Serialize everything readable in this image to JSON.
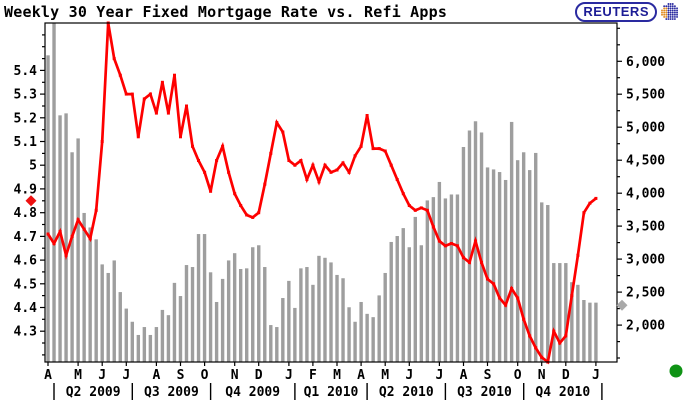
{
  "header": {
    "title": "Weekly 30 Year Fixed Mortgage Rate vs. Refi Apps",
    "logo_text": "REUTERS"
  },
  "chart_data": {
    "type": "bar",
    "subtype": "combo-line-bar",
    "title": "Weekly 30 Year Fixed Mortgage Rate vs. Refi Apps",
    "x_slots": 95,
    "weeks": 92,
    "series": [
      {
        "name": "30 Year Fixed Mortgage Rate",
        "type": "line",
        "axis": "left",
        "color": "#fe0000",
        "values": [
          4.71,
          4.67,
          4.72,
          4.62,
          4.7,
          4.77,
          4.73,
          4.69,
          4.81,
          5.1,
          5.6,
          5.45,
          5.38,
          5.3,
          5.3,
          5.12,
          5.28,
          5.3,
          5.22,
          5.35,
          5.22,
          5.38,
          5.12,
          5.25,
          5.08,
          5.02,
          4.97,
          4.89,
          5.02,
          5.08,
          4.97,
          4.88,
          4.83,
          4.79,
          4.78,
          4.8,
          4.92,
          5.05,
          5.18,
          5.14,
          5.02,
          5.0,
          5.02,
          4.94,
          5.0,
          4.93,
          5.0,
          4.97,
          4.98,
          5.01,
          4.97,
          5.04,
          5.08,
          5.21,
          5.07,
          5.07,
          5.06,
          5.0,
          4.94,
          4.88,
          4.83,
          4.81,
          4.82,
          4.81,
          4.74,
          4.68,
          4.66,
          4.67,
          4.66,
          4.61,
          4.59,
          4.68,
          4.59,
          4.52,
          4.5,
          4.44,
          4.41,
          4.48,
          4.44,
          4.35,
          4.28,
          4.23,
          4.19,
          4.17,
          4.3,
          4.25,
          4.28,
          4.45,
          4.62,
          4.8,
          4.84,
          4.86
        ]
      },
      {
        "name": "Refi Apps",
        "type": "bar",
        "axis": "right",
        "color": "#9e9e9e",
        "values": [
          6090,
          6650,
          5180,
          5210,
          4620,
          4830,
          3700,
          3480,
          3300,
          2920,
          2790,
          2980,
          2500,
          2250,
          2050,
          1850,
          1970,
          1850,
          1970,
          2230,
          2150,
          2640,
          2440,
          2910,
          2880,
          3380,
          3380,
          2800,
          2350,
          2700,
          2980,
          3090,
          2850,
          2860,
          3180,
          3210,
          2880,
          2000,
          1970,
          2410,
          2670,
          2260,
          2860,
          2880,
          2610,
          3050,
          3020,
          2950,
          2760,
          2710,
          2270,
          2050,
          2350,
          2170,
          2120,
          2450,
          2790,
          3260,
          3350,
          3470,
          3180,
          3640,
          3210,
          3890,
          3940,
          4170,
          3920,
          3980,
          3980,
          4700,
          4950,
          5090,
          4920,
          4390,
          4360,
          4320,
          4200,
          5080,
          4500,
          4620,
          4350,
          4610,
          3860,
          3820,
          2940,
          2940,
          2940,
          2650,
          2610,
          2380,
          2340,
          2340
        ]
      }
    ],
    "left_axis": {
      "min": 4.17,
      "max": 5.6,
      "tick_labels": [
        "5.4",
        "5.3",
        "5.2",
        "5.1",
        "5",
        "4.9",
        "4.8",
        "4.7",
        "4.6",
        "4.5",
        "4.4",
        "4.3"
      ],
      "major_step": 0.1,
      "minor_step": 0.05,
      "latest_value": 4.85,
      "marker_color": "#ee1111"
    },
    "right_axis": {
      "min": 1440,
      "max": 6580,
      "tick_labels": [
        "6,000",
        "5,500",
        "5,000",
        "4,500",
        "4,000",
        "3,500",
        "3,000",
        "2,500",
        "2,000"
      ],
      "major_step": 500,
      "minor_step": 250,
      "latest_value": 2300,
      "marker_color": "#a9a9a9"
    },
    "x_axis": {
      "months": [
        {
          "label": "A",
          "week": 0
        },
        {
          "label": "M",
          "week": 5
        },
        {
          "label": "J",
          "week": 9
        },
        {
          "label": "J",
          "week": 13
        },
        {
          "label": "A",
          "week": 18
        },
        {
          "label": "S",
          "week": 22
        },
        {
          "label": "O",
          "week": 26
        },
        {
          "label": "N",
          "week": 31
        },
        {
          "label": "D",
          "week": 35
        },
        {
          "label": "J",
          "week": 40
        },
        {
          "label": "F",
          "week": 44
        },
        {
          "label": "M",
          "week": 48
        },
        {
          "label": "A",
          "week": 52
        },
        {
          "label": "M",
          "week": 56
        },
        {
          "label": "J",
          "week": 60
        },
        {
          "label": "J",
          "week": 65
        },
        {
          "label": "A",
          "week": 69
        },
        {
          "label": "S",
          "week": 73
        },
        {
          "label": "O",
          "week": 78
        },
        {
          "label": "N",
          "week": 82
        },
        {
          "label": "D",
          "week": 86
        },
        {
          "label": "J",
          "week": 91
        }
      ],
      "quarters": [
        "Q2 2009",
        "Q3 2009",
        "Q4 2009",
        "Q1 2010",
        "Q2 2010",
        "Q3 2010",
        "Q4 2010"
      ],
      "quarter_boundaries_weeks": [
        0,
        13,
        26,
        40,
        52,
        65,
        78,
        91
      ]
    },
    "decorations": {
      "green_dot_color": "#0f9315",
      "border_color": "#000000",
      "background": "#ffffff"
    }
  }
}
